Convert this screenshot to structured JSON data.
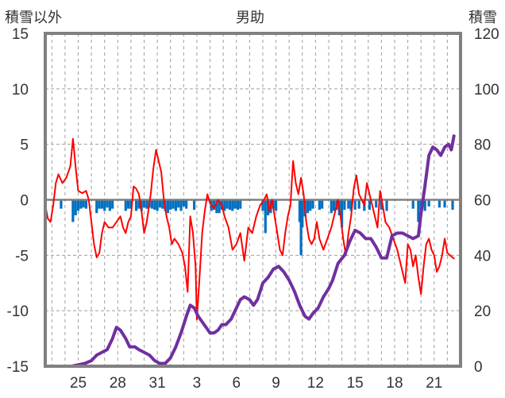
{
  "title": "男助",
  "left_axis_label": "積雪以外",
  "right_axis_label": "積雪",
  "colors": {
    "temp_line": "#ff0000",
    "snow_line": "#7030a0",
    "bars": "#0070c0",
    "frame": "#808080",
    "grid": "#9e9e9e",
    "zero_line": "#808080"
  },
  "chart_data": {
    "type": "line",
    "title": "男助",
    "left_axis": {
      "label": "積雪以外",
      "range": [
        -15,
        15
      ],
      "ticks": [
        "-15",
        "-10",
        "-5",
        "0",
        "5",
        "10",
        "15"
      ]
    },
    "right_axis": {
      "label": "積雪",
      "range": [
        0,
        120
      ],
      "ticks": [
        "0",
        "20",
        "40",
        "60",
        "80",
        "100",
        "120"
      ]
    },
    "x_ticks": [
      "25",
      "28",
      "31",
      "3",
      "6",
      "9",
      "12",
      "15",
      "18",
      "21"
    ],
    "x_tick_positions_days": [
      2,
      5,
      8,
      11,
      14,
      17,
      20,
      23,
      26,
      29
    ],
    "x_range_days": [
      -0.5,
      31
    ],
    "gridlines_vertical_days": [
      0,
      1,
      2,
      3,
      4,
      5,
      6,
      7,
      8,
      9,
      10,
      11,
      12,
      13,
      14,
      15,
      16,
      17,
      18,
      19,
      20,
      21,
      22,
      23,
      24,
      25,
      26,
      27,
      28,
      29,
      30
    ],
    "series": [
      {
        "axis": "left",
        "style": "line",
        "points": [
          [
            -0.5,
            -0.5
          ],
          [
            -0.3,
            -1.7
          ],
          [
            -0.1,
            -2
          ],
          [
            0.1,
            -0.5
          ],
          [
            0.3,
            1.5
          ],
          [
            0.5,
            2.3
          ],
          [
            0.8,
            1.5
          ],
          [
            1.1,
            2
          ],
          [
            1.4,
            3
          ],
          [
            1.6,
            5.5
          ],
          [
            1.8,
            3
          ],
          [
            2.0,
            0.8
          ],
          [
            2.3,
            0.6
          ],
          [
            2.6,
            0.8
          ],
          [
            2.8,
            0
          ],
          [
            3.0,
            -2
          ],
          [
            3.2,
            -4
          ],
          [
            3.4,
            -5.2
          ],
          [
            3.6,
            -4.8
          ],
          [
            3.8,
            -3
          ],
          [
            4.0,
            -2
          ],
          [
            4.3,
            -2.5
          ],
          [
            4.6,
            -2.5
          ],
          [
            4.9,
            -2.0
          ],
          [
            5.2,
            -1.5
          ],
          [
            5.4,
            -2.5
          ],
          [
            5.6,
            -3
          ],
          [
            5.8,
            -2
          ],
          [
            6.0,
            -1.5
          ],
          [
            6.2,
            1.2
          ],
          [
            6.4,
            1.0
          ],
          [
            6.6,
            0.5
          ],
          [
            6.8,
            -1
          ],
          [
            7.0,
            -3
          ],
          [
            7.2,
            -2
          ],
          [
            7.5,
            0.5
          ],
          [
            7.7,
            2.8
          ],
          [
            7.9,
            4.5
          ],
          [
            8.1,
            3.5
          ],
          [
            8.3,
            2.5
          ],
          [
            8.5,
            0
          ],
          [
            8.7,
            -1.5
          ],
          [
            8.9,
            -2.5
          ],
          [
            9.1,
            -4
          ],
          [
            9.3,
            -3.5
          ],
          [
            9.6,
            -4
          ],
          [
            9.9,
            -4.8
          ],
          [
            10.1,
            -6
          ],
          [
            10.3,
            -8.3
          ],
          [
            10.5,
            -1.5
          ],
          [
            10.7,
            -3
          ],
          [
            10.9,
            -6
          ],
          [
            11.0,
            -10.8
          ],
          [
            11.2,
            -7
          ],
          [
            11.4,
            -3
          ],
          [
            11.6,
            -1
          ],
          [
            11.8,
            0.5
          ],
          [
            12.0,
            -0.3
          ],
          [
            12.3,
            -0.8
          ],
          [
            12.6,
            0
          ],
          [
            12.9,
            -0.5
          ],
          [
            13.1,
            -1.5
          ],
          [
            13.4,
            -2.5
          ],
          [
            13.7,
            -4.5
          ],
          [
            14.0,
            -4
          ],
          [
            14.3,
            -3
          ],
          [
            14.6,
            -5.5
          ],
          [
            14.9,
            -2.5
          ],
          [
            15.2,
            -3
          ],
          [
            15.5,
            -1.5
          ],
          [
            15.8,
            -0.5
          ],
          [
            16.1,
            0
          ],
          [
            16.3,
            0.5
          ],
          [
            16.5,
            -1
          ],
          [
            16.7,
            0
          ],
          [
            16.9,
            -1.5
          ],
          [
            17.1,
            -3
          ],
          [
            17.3,
            -4.5
          ],
          [
            17.5,
            -5
          ],
          [
            17.7,
            -3
          ],
          [
            17.9,
            -1.5
          ],
          [
            18.1,
            -0.5
          ],
          [
            18.3,
            3.5
          ],
          [
            18.5,
            1.5
          ],
          [
            18.7,
            0.5
          ],
          [
            18.9,
            2
          ],
          [
            19.1,
            0.5
          ],
          [
            19.3,
            -2
          ],
          [
            19.5,
            -3.5
          ],
          [
            19.7,
            -4
          ],
          [
            19.9,
            -3.5
          ],
          [
            20.1,
            -2
          ],
          [
            20.3,
            -3.5
          ],
          [
            20.6,
            -4.5
          ],
          [
            20.9,
            -3.5
          ],
          [
            21.2,
            -2.5
          ],
          [
            21.5,
            -1
          ],
          [
            21.7,
            0
          ],
          [
            21.9,
            -1.5
          ],
          [
            22.1,
            -3.5
          ],
          [
            22.3,
            -5
          ],
          [
            22.5,
            -3
          ],
          [
            22.7,
            -1.5
          ],
          [
            22.9,
            1
          ],
          [
            23.1,
            2.2
          ],
          [
            23.3,
            0.5
          ],
          [
            23.5,
            0
          ],
          [
            23.7,
            -0.5
          ],
          [
            23.9,
            1.5
          ],
          [
            24.1,
            0.5
          ],
          [
            24.3,
            -0.5
          ],
          [
            24.5,
            -1.5
          ],
          [
            24.7,
            -2.5
          ],
          [
            24.9,
            0.8
          ],
          [
            25.1,
            -0.5
          ],
          [
            25.3,
            -2
          ],
          [
            25.6,
            -2.5
          ],
          [
            25.9,
            -3.5
          ],
          [
            26.2,
            -4.5
          ],
          [
            26.5,
            -6
          ],
          [
            26.8,
            -7.5
          ],
          [
            27.0,
            -4
          ],
          [
            27.2,
            -4.5
          ],
          [
            27.4,
            -6
          ],
          [
            27.6,
            -5
          ],
          [
            27.8,
            -7
          ],
          [
            28.0,
            -8.5
          ],
          [
            28.2,
            -6
          ],
          [
            28.4,
            -4
          ],
          [
            28.6,
            -3.5
          ],
          [
            28.8,
            -4.5
          ],
          [
            29.0,
            -5
          ],
          [
            29.2,
            -6.5
          ],
          [
            29.4,
            -6
          ],
          [
            29.6,
            -5
          ],
          [
            29.8,
            -3.5
          ],
          [
            30.0,
            -4.8
          ],
          [
            30.2,
            -5
          ],
          [
            30.5,
            -5.3
          ]
        ]
      },
      {
        "axis": "right",
        "style": "line",
        "points": [
          [
            -0.5,
            0
          ],
          [
            1.5,
            0
          ],
          [
            2.5,
            1
          ],
          [
            3.0,
            2
          ],
          [
            3.4,
            4
          ],
          [
            3.8,
            5
          ],
          [
            4.2,
            6
          ],
          [
            4.6,
            10
          ],
          [
            4.9,
            14
          ],
          [
            5.2,
            13
          ],
          [
            5.6,
            10
          ],
          [
            5.9,
            7
          ],
          [
            6.3,
            7
          ],
          [
            6.6,
            6
          ],
          [
            7.0,
            5
          ],
          [
            7.4,
            4
          ],
          [
            7.8,
            2
          ],
          [
            8.2,
            1
          ],
          [
            8.6,
            1
          ],
          [
            9.0,
            3
          ],
          [
            9.4,
            7
          ],
          [
            9.8,
            12
          ],
          [
            10.2,
            18
          ],
          [
            10.5,
            22
          ],
          [
            10.8,
            21
          ],
          [
            11.1,
            18
          ],
          [
            11.4,
            16
          ],
          [
            11.7,
            14
          ],
          [
            12.0,
            12
          ],
          [
            12.3,
            12
          ],
          [
            12.6,
            13
          ],
          [
            12.9,
            15
          ],
          [
            13.2,
            15
          ],
          [
            13.6,
            17
          ],
          [
            14.0,
            21
          ],
          [
            14.3,
            24
          ],
          [
            14.6,
            25
          ],
          [
            15.0,
            24
          ],
          [
            15.3,
            22
          ],
          [
            15.6,
            24
          ],
          [
            16.0,
            30
          ],
          [
            16.4,
            32
          ],
          [
            16.8,
            35
          ],
          [
            17.2,
            36
          ],
          [
            17.6,
            34
          ],
          [
            18.0,
            31
          ],
          [
            18.4,
            27
          ],
          [
            18.8,
            22
          ],
          [
            19.2,
            18
          ],
          [
            19.5,
            17
          ],
          [
            19.8,
            19
          ],
          [
            20.2,
            21
          ],
          [
            20.6,
            25
          ],
          [
            21.0,
            28
          ],
          [
            21.3,
            31
          ],
          [
            21.7,
            37
          ],
          [
            22.2,
            40
          ],
          [
            22.6,
            45
          ],
          [
            23.0,
            49
          ],
          [
            23.4,
            48
          ],
          [
            23.8,
            46
          ],
          [
            24.2,
            46
          ],
          [
            24.6,
            43
          ],
          [
            25.0,
            39
          ],
          [
            25.4,
            39
          ],
          [
            25.8,
            47
          ],
          [
            26.2,
            48
          ],
          [
            26.6,
            48
          ],
          [
            27.0,
            47
          ],
          [
            27.4,
            46
          ],
          [
            27.8,
            47
          ],
          [
            28.0,
            55
          ],
          [
            28.3,
            65
          ],
          [
            28.6,
            76
          ],
          [
            28.9,
            79
          ],
          [
            29.2,
            78
          ],
          [
            29.5,
            76
          ],
          [
            29.8,
            79
          ],
          [
            30.1,
            80
          ],
          [
            30.3,
            78
          ],
          [
            30.5,
            83
          ]
        ]
      },
      {
        "axis": "left",
        "style": "bars",
        "points": [
          [
            0.7,
            -0.8
          ],
          [
            1.6,
            -2
          ],
          [
            1.8,
            -1.4
          ],
          [
            2.0,
            -1
          ],
          [
            2.2,
            -0.8
          ],
          [
            2.4,
            -0.7
          ],
          [
            2.6,
            -0.8
          ],
          [
            3.4,
            -1.2
          ],
          [
            3.6,
            -0.8
          ],
          [
            3.8,
            -0.8
          ],
          [
            4.0,
            -1
          ],
          [
            4.2,
            -0.7
          ],
          [
            4.4,
            -1
          ],
          [
            4.6,
            -0.8
          ],
          [
            5.6,
            -1
          ],
          [
            5.8,
            -0.8
          ],
          [
            6.0,
            -0.8
          ],
          [
            6.4,
            -1
          ],
          [
            6.6,
            -0.8
          ],
          [
            6.8,
            -1
          ],
          [
            7.0,
            -0.7
          ],
          [
            7.2,
            -0.8
          ],
          [
            7.4,
            -0.7
          ],
          [
            7.6,
            -0.8
          ],
          [
            7.8,
            -0.9
          ],
          [
            8.0,
            -1
          ],
          [
            8.2,
            -0.7
          ],
          [
            8.4,
            -0.8
          ],
          [
            8.6,
            -1
          ],
          [
            8.8,
            -1.2
          ],
          [
            9.0,
            -0.9
          ],
          [
            9.2,
            -0.8
          ],
          [
            9.4,
            -1
          ],
          [
            9.6,
            -0.7
          ],
          [
            9.8,
            -1
          ],
          [
            10.0,
            -0.6
          ],
          [
            10.2,
            -0.8
          ],
          [
            10.8,
            -0.9
          ],
          [
            12.1,
            -1
          ],
          [
            12.3,
            -0.9
          ],
          [
            12.5,
            -1.2
          ],
          [
            12.7,
            -1.2
          ],
          [
            12.9,
            -0.9
          ],
          [
            13.1,
            -1
          ],
          [
            13.3,
            -0.8
          ],
          [
            13.5,
            -0.9
          ],
          [
            13.7,
            -1
          ],
          [
            13.9,
            -0.8
          ],
          [
            14.1,
            -0.9
          ],
          [
            14.3,
            -0.8
          ],
          [
            16.0,
            -1
          ],
          [
            16.2,
            -3
          ],
          [
            16.4,
            -1.4
          ],
          [
            16.6,
            -1.2
          ],
          [
            16.8,
            -0.8
          ],
          [
            17.0,
            -1
          ],
          [
            18.8,
            -2
          ],
          [
            18.9,
            -5
          ],
          [
            19.0,
            -2.5
          ],
          [
            19.2,
            -1.5
          ],
          [
            19.4,
            -1.2
          ],
          [
            19.6,
            -1
          ],
          [
            19.8,
            -0.8
          ],
          [
            20.3,
            -0.9
          ],
          [
            20.5,
            -0.8
          ],
          [
            21.2,
            -1.2
          ],
          [
            21.4,
            -1
          ],
          [
            21.6,
            -0.9
          ],
          [
            21.8,
            -1.4
          ],
          [
            22.0,
            -2.5
          ],
          [
            22.2,
            -0.9
          ],
          [
            22.5,
            -0.8
          ],
          [
            22.7,
            -1
          ],
          [
            23.0,
            -0.9
          ],
          [
            23.3,
            -0.8
          ],
          [
            23.7,
            -1
          ],
          [
            24.1,
            -0.9
          ],
          [
            24.6,
            -0.7
          ],
          [
            25.0,
            -0.9
          ],
          [
            25.4,
            -1
          ],
          [
            27.4,
            -0.8
          ],
          [
            27.8,
            -2
          ],
          [
            28.0,
            -0.9
          ],
          [
            28.3,
            -1
          ],
          [
            28.6,
            -0.6
          ],
          [
            29.4,
            -0.7
          ],
          [
            29.8,
            -0.7
          ],
          [
            30.4,
            -0.9
          ]
        ]
      }
    ]
  }
}
